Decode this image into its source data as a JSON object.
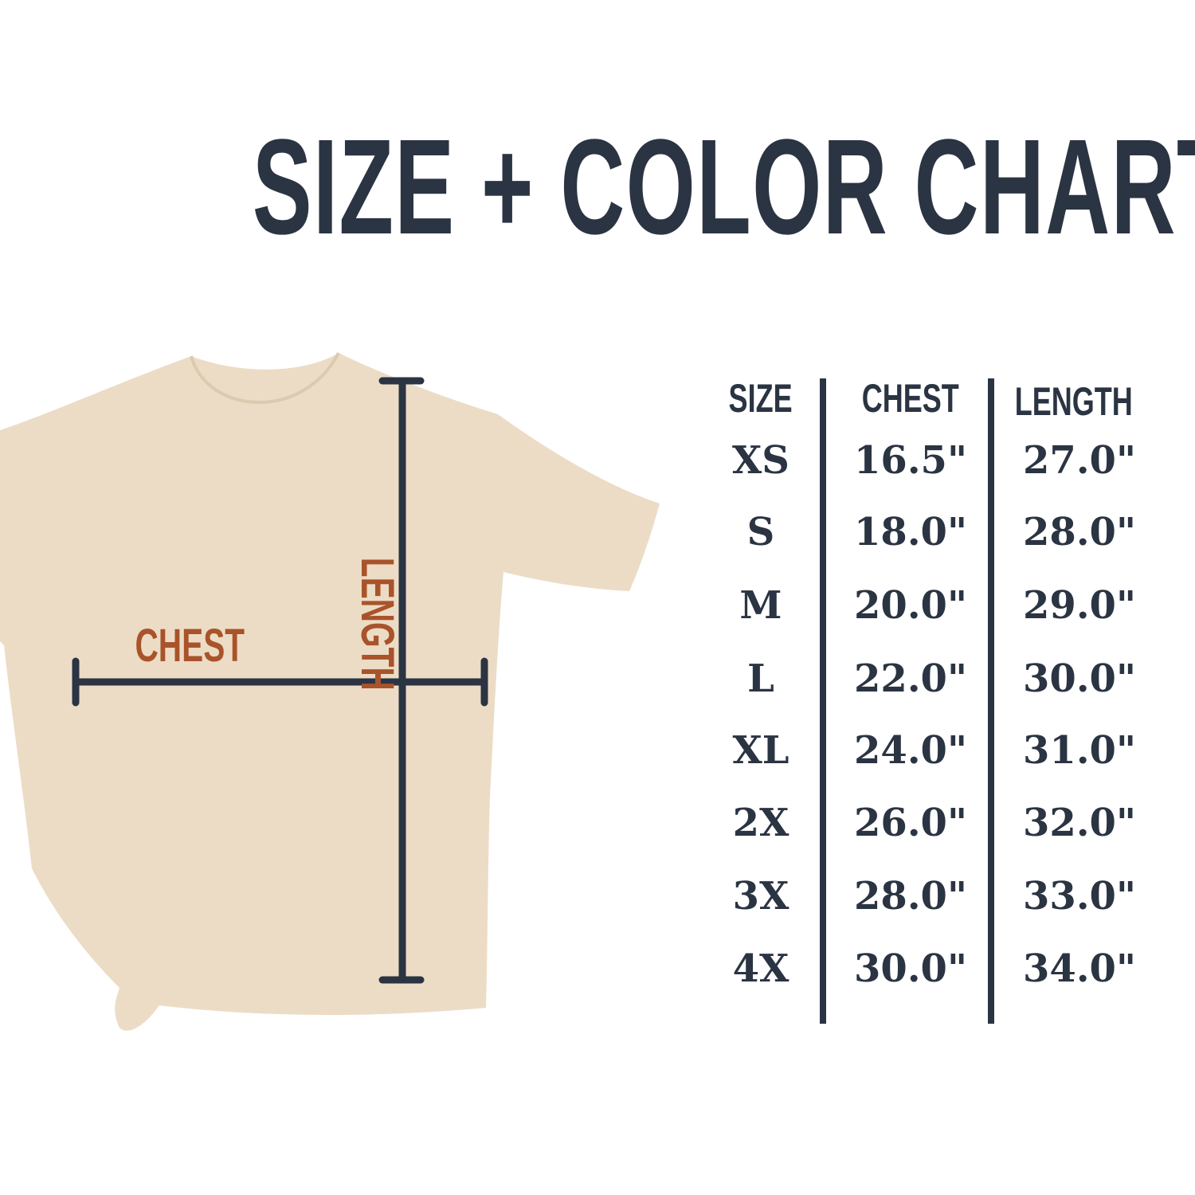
{
  "title": "SIZE + COLOR CHART",
  "diagram": {
    "chest_label": "CHEST",
    "length_label": "LENGTH",
    "shirt_color": "#ecdcc6",
    "label_color": "#a9532b",
    "line_color": "#2b3442"
  },
  "table": {
    "headers": [
      "SIZE",
      "CHEST",
      "LENGTH"
    ],
    "rows": [
      [
        "XS",
        "16.5\"",
        "27.0\""
      ],
      [
        "S",
        "18.0\"",
        "28.0\""
      ],
      [
        "M",
        "20.0\"",
        "29.0\""
      ],
      [
        "L",
        "22.0\"",
        "30.0\""
      ],
      [
        "XL",
        "24.0\"",
        "31.0\""
      ],
      [
        "2X",
        "26.0\"",
        "32.0\""
      ],
      [
        "3X",
        "28.0\"",
        "33.0\""
      ],
      [
        "4X",
        "30.0\"",
        "34.0\""
      ]
    ]
  }
}
